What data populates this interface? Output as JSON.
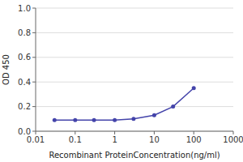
{
  "chart_data": {
    "type": "line",
    "x": [
      0.03,
      0.1,
      0.3,
      1,
      3,
      10,
      30,
      100
    ],
    "values": [
      0.09,
      0.09,
      0.09,
      0.09,
      0.1,
      0.13,
      0.2,
      0.35
    ],
    "color": "#4444aa",
    "marker": "circle",
    "xlabel": "Recombinant ProteinConcentration(ng/ml)",
    "ylabel": "OD 450",
    "log": "x",
    "xlim": [
      0.01,
      1000
    ],
    "ylim": [
      0,
      1
    ],
    "xticks": [
      0.01,
      0.1,
      1,
      10,
      100,
      1000
    ],
    "yticks": [
      {
        "value": 0,
        "label": "0.0"
      },
      0.2,
      0.4,
      0.6,
      0.8,
      {
        "value": 1,
        "label": "1.0"
      }
    ],
    "grid": true
  }
}
